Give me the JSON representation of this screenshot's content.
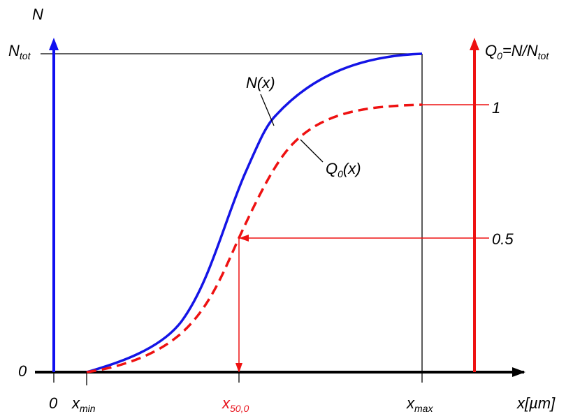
{
  "colors": {
    "left_axis": "#1010f0",
    "right_axis": "#ee1111",
    "n_curve": "#1414e6",
    "q_curve": "#ee1111",
    "x50_marker": "#ee1111",
    "frame": "#000000"
  },
  "axes": {
    "left_axis_label": "N",
    "left_top_main": "N",
    "left_top_sub": "tot",
    "left_zero": "0",
    "bottom_zero": "0",
    "x_axis_label": "x[µm]",
    "xmin_main": "x",
    "xmin_sub": "min",
    "x50_main": "x",
    "x50_sub": "50,0",
    "xmax_main": "x",
    "xmax_sub": "max",
    "right_axis_q_main": "Q",
    "right_axis_q_sub": "0",
    "right_axis_eq_n": "=N/N",
    "right_axis_tot_sub": "tot",
    "right_one": "1",
    "right_half": "0.5"
  },
  "curves": {
    "n_label": "N(x)",
    "q_label_main": "Q",
    "q_label_sub": "0",
    "q_label_rest": "(x)"
  }
}
